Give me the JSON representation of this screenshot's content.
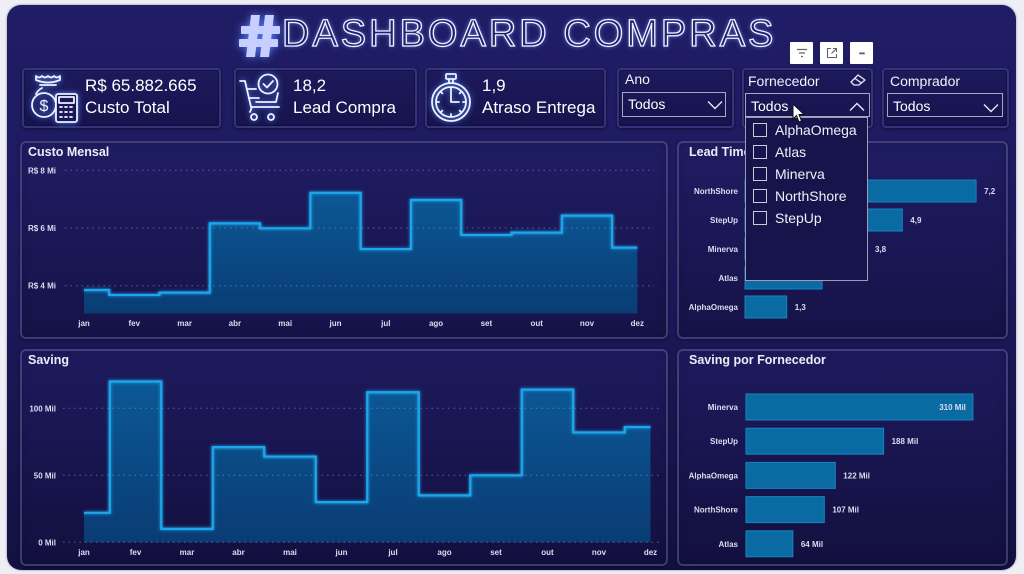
{
  "header": {
    "title": "DASHBOARD COMPRAS",
    "logo_icon": "hashtag-logo-icon",
    "visual_header_buttons": [
      {
        "name": "filter",
        "icon": "filter-icon"
      },
      {
        "name": "focus-mode",
        "icon": "expand-icon"
      },
      {
        "name": "more-options",
        "icon": "more-options-icon",
        "glyph": "•••"
      }
    ]
  },
  "kpis": [
    {
      "value": "R$ 65.882.665",
      "label": "Custo Total",
      "icon": "money-bag-calculator-icon"
    },
    {
      "value": "18,2",
      "label": "Lead Compra",
      "icon": "cart-check-icon"
    },
    {
      "value": "1,9",
      "label": "Atraso Entrega",
      "icon": "stopwatch-icon"
    }
  ],
  "slicers": {
    "ano": {
      "label": "Ano",
      "selected": "Todos",
      "state": "collapsed"
    },
    "fornecedor": {
      "label": "Fornecedor",
      "selected": "Todos",
      "state": "expanded",
      "clear_icon": "eraser-icon",
      "options": [
        {
          "label": "AlphaOmega",
          "checked": false
        },
        {
          "label": "Atlas",
          "checked": false
        },
        {
          "label": "Minerva",
          "checked": false
        },
        {
          "label": "NorthShore",
          "checked": false
        },
        {
          "label": "StepUp",
          "checked": false
        }
      ]
    },
    "comprador": {
      "label": "Comprador",
      "selected": "Todos",
      "state": "collapsed"
    }
  },
  "panels": {
    "custo_mensal": {
      "title": "Custo Mensal"
    },
    "lead_time": {
      "title": "Lead Time por Fornecedor"
    },
    "saving": {
      "title": "Saving"
    },
    "saving_fornecedor": {
      "title": "Saving por Fornecedor"
    }
  },
  "theme": {
    "background": "#1e1b60",
    "line_accent": "#1fa7ea",
    "area_top": "#0b5896",
    "area_bottom": "#0a3c74",
    "bar": "#0a6ba3",
    "text": "#ffffff"
  },
  "chart_data": [
    {
      "type": "area",
      "step": "middle",
      "title": "Custo Mensal",
      "categories": [
        "jan",
        "fev",
        "mar",
        "abr",
        "mai",
        "jun",
        "jul",
        "ago",
        "set",
        "out",
        "nov",
        "dez"
      ],
      "values": [
        3.85,
        3.68,
        3.76,
        6.16,
        5.99,
        7.22,
        5.27,
        6.97,
        5.76,
        5.84,
        6.43,
        5.32
      ],
      "unit": "R$ Mi",
      "y_ticks": [
        {
          "value": 4,
          "label": "R$ 4 Mi"
        },
        {
          "value": 6,
          "label": "R$ 6 Mi"
        },
        {
          "value": 8,
          "label": "R$ 8 Mi"
        }
      ],
      "ylim": [
        3.0,
        8.3
      ],
      "xlabel": "",
      "ylabel": "",
      "grid": true,
      "legend": "none"
    },
    {
      "type": "area",
      "step": "middle",
      "title": "Saving",
      "categories": [
        "jan",
        "fev",
        "mar",
        "abr",
        "mai",
        "jun",
        "jul",
        "ago",
        "set",
        "out",
        "nov",
        "dez"
      ],
      "values": [
        22,
        120,
        10,
        71,
        64,
        30,
        112,
        35,
        50,
        114,
        82,
        86
      ],
      "unit": "Mil",
      "y_ticks": [
        {
          "value": 0,
          "label": "0 Mil"
        },
        {
          "value": 50,
          "label": "50 Mil"
        },
        {
          "value": 100,
          "label": "100 Mil"
        }
      ],
      "ylim": [
        0,
        125
      ],
      "xlabel": "",
      "ylabel": "",
      "grid": true,
      "legend": "none"
    },
    {
      "type": "bar",
      "orientation": "horizontal",
      "title": "Lead Time por Fornecedor",
      "categories": [
        "NorthShore",
        "StepUp",
        "Minerva",
        "Atlas",
        "AlphaOmega"
      ],
      "values": [
        7.2,
        4.9,
        3.8,
        2.4,
        1.3
      ],
      "data_labels": [
        "7,2",
        "4,9",
        "3,8",
        "",
        "1,3"
      ],
      "xlabel": "",
      "ylabel": "",
      "grid": false,
      "legend": "none"
    },
    {
      "type": "bar",
      "orientation": "horizontal",
      "title": "Saving por Fornecedor",
      "categories": [
        "Minerva",
        "StepUp",
        "AlphaOmega",
        "NorthShore",
        "Atlas"
      ],
      "values": [
        310,
        188,
        122,
        107,
        64
      ],
      "unit": "Mil",
      "data_labels": [
        "310 Mil",
        "188 Mil",
        "122 Mil",
        "107 Mil",
        "64 Mil"
      ],
      "xlabel": "",
      "ylabel": "",
      "grid": false,
      "legend": "none"
    }
  ]
}
